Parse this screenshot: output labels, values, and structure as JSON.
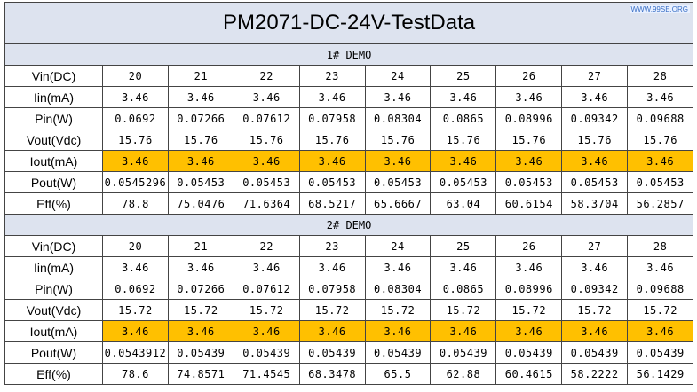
{
  "title": "PM2071-DC-24V-TestData",
  "watermark": "WWW.99SE.ORG",
  "sections": [
    {
      "title": "1# DEMO",
      "rows": [
        {
          "label": "Vin(DC)",
          "values": [
            "20",
            "21",
            "22",
            "23",
            "24",
            "25",
            "26",
            "27",
            "28"
          ]
        },
        {
          "label": "Iin(mA)",
          "values": [
            "3.46",
            "3.46",
            "3.46",
            "3.46",
            "3.46",
            "3.46",
            "3.46",
            "3.46",
            "3.46"
          ]
        },
        {
          "label": "Pin(W)",
          "values": [
            "0.0692",
            "0.07266",
            "0.07612",
            "0.07958",
            "0.08304",
            "0.0865",
            "0.08996",
            "0.09342",
            "0.09688"
          ]
        },
        {
          "label": "Vout(Vdc)",
          "values": [
            "15.76",
            "15.76",
            "15.76",
            "15.76",
            "15.76",
            "15.76",
            "15.76",
            "15.76",
            "15.76"
          ]
        },
        {
          "label": "Iout(mA)",
          "color": "#ffc000",
          "values": [
            "3.46",
            "3.46",
            "3.46",
            "3.46",
            "3.46",
            "3.46",
            "3.46",
            "3.46",
            "3.46"
          ]
        },
        {
          "label": "Pout(W)",
          "values": [
            "0.0545296",
            "0.05453",
            "0.05453",
            "0.05453",
            "0.05453",
            "0.05453",
            "0.05453",
            "0.05453",
            "0.05453"
          ]
        },
        {
          "label": "Eff(%)",
          "values": [
            "78.8",
            "75.0476",
            "71.6364",
            "68.5217",
            "65.6667",
            "63.04",
            "60.6154",
            "58.3704",
            "56.2857"
          ]
        }
      ]
    },
    {
      "title": "2# DEMO",
      "rows": [
        {
          "label": "Vin(DC)",
          "values": [
            "20",
            "21",
            "22",
            "23",
            "24",
            "25",
            "26",
            "27",
            "28"
          ]
        },
        {
          "label": "Iin(mA)",
          "values": [
            "3.46",
            "3.46",
            "3.46",
            "3.46",
            "3.46",
            "3.46",
            "3.46",
            "3.46",
            "3.46"
          ]
        },
        {
          "label": "Pin(W)",
          "values": [
            "0.0692",
            "0.07266",
            "0.07612",
            "0.07958",
            "0.08304",
            "0.0865",
            "0.08996",
            "0.09342",
            "0.09688"
          ]
        },
        {
          "label": "Vout(Vdc)",
          "values": [
            "15.72",
            "15.72",
            "15.72",
            "15.72",
            "15.72",
            "15.72",
            "15.72",
            "15.72",
            "15.72"
          ]
        },
        {
          "label": "Iout(mA)",
          "color": "#ffc000",
          "values": [
            "3.46",
            "3.46",
            "3.46",
            "3.46",
            "3.46",
            "3.46",
            "3.46",
            "3.46",
            "3.46"
          ]
        },
        {
          "label": "Pout(W)",
          "values": [
            "0.0543912",
            "0.05439",
            "0.05439",
            "0.05439",
            "0.05439",
            "0.05439",
            "0.05439",
            "0.05439",
            "0.05439"
          ]
        },
        {
          "label": "Eff(%)",
          "values": [
            "78.6",
            "74.8571",
            "71.4545",
            "68.3478",
            "65.5",
            "62.88",
            "60.4615",
            "58.2222",
            "56.1429"
          ]
        }
      ]
    }
  ]
}
